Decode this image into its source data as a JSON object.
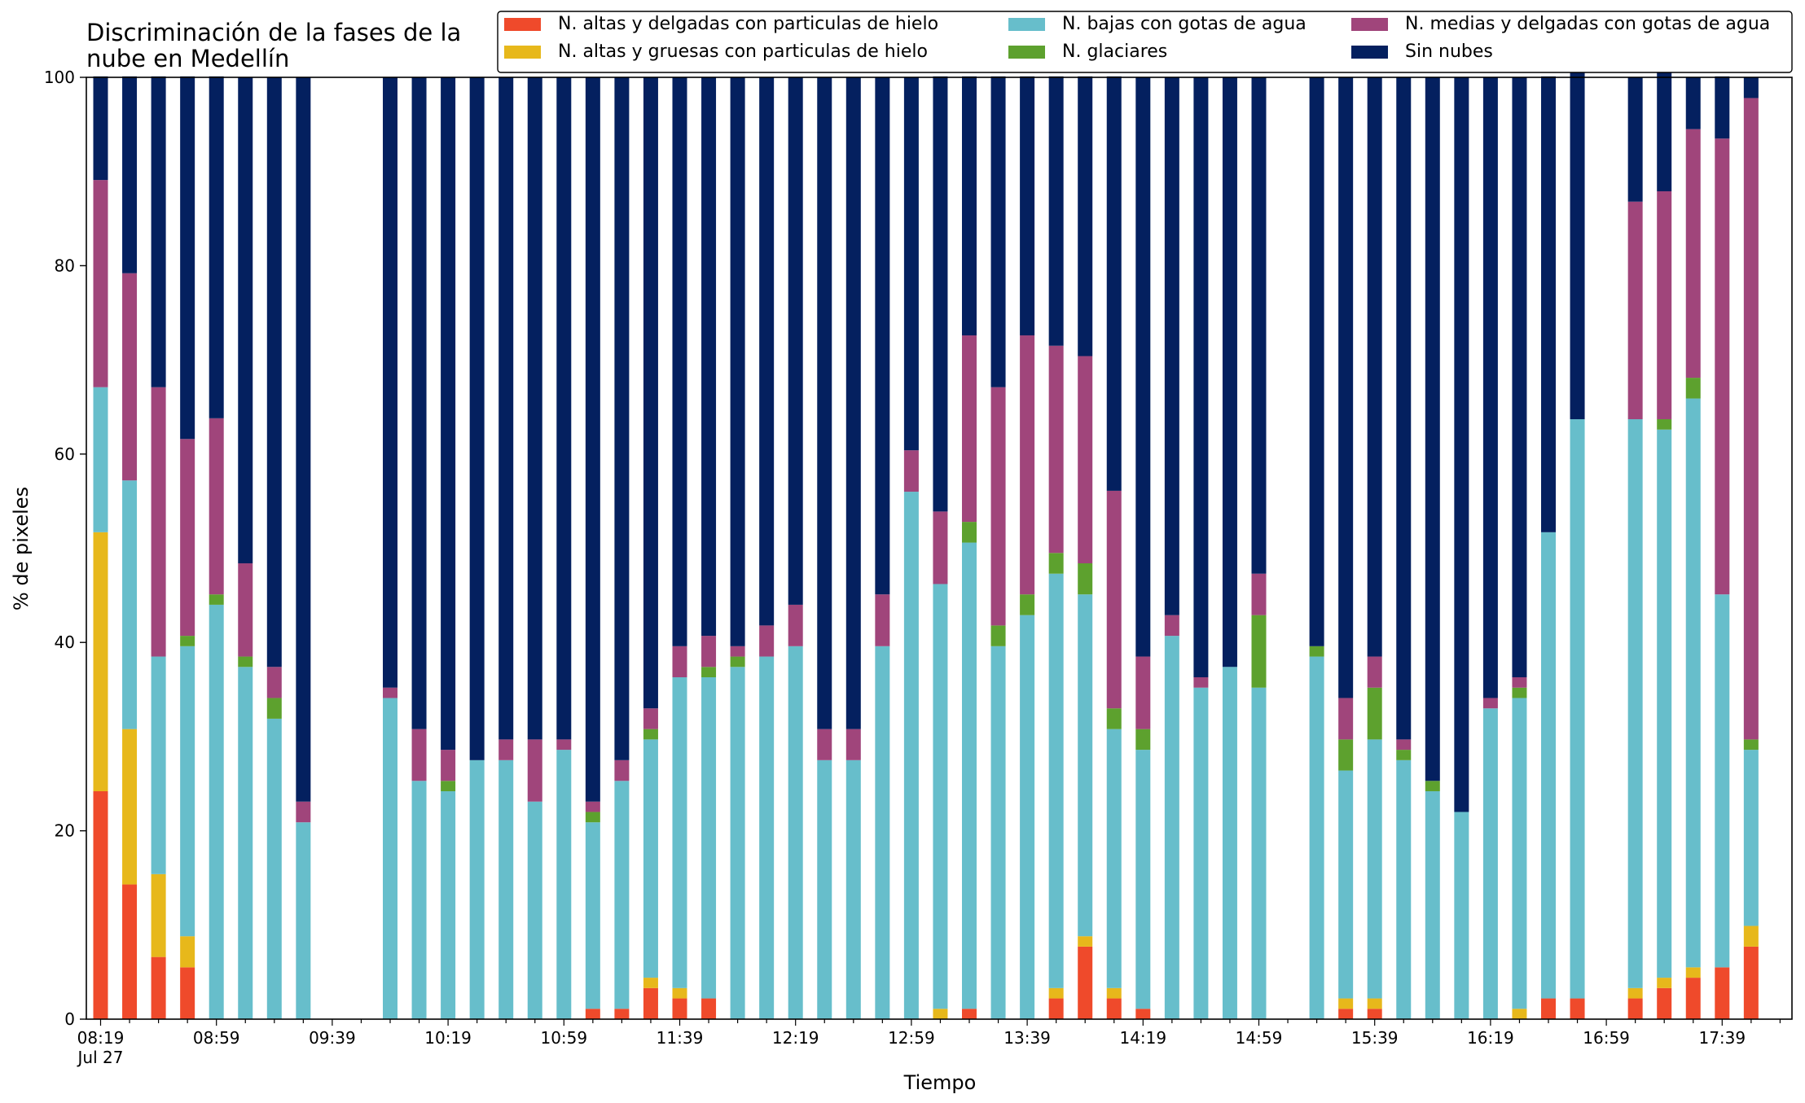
{
  "chart_data": {
    "type": "bar",
    "stacked": true,
    "title_lines": [
      "Discriminación de la fases de la",
      "nube en Medellín"
    ],
    "xlabel": "Tiempo",
    "ylabel": "% de pixeles",
    "ylim": [
      0,
      100
    ],
    "yticks": [
      0,
      20,
      40,
      60,
      80,
      100
    ],
    "xticks": [
      {
        "slot": 0,
        "label": "08:19",
        "sub": "Jul 27"
      },
      {
        "slot": 4,
        "label": "08:59"
      },
      {
        "slot": 8,
        "label": "09:39"
      },
      {
        "slot": 12,
        "label": "10:19"
      },
      {
        "slot": 16,
        "label": "10:59"
      },
      {
        "slot": 20,
        "label": "11:39"
      },
      {
        "slot": 24,
        "label": "12:19"
      },
      {
        "slot": 28,
        "label": "12:59"
      },
      {
        "slot": 32,
        "label": "13:39"
      },
      {
        "slot": 36,
        "label": "14:19"
      },
      {
        "slot": 40,
        "label": "14:59"
      },
      {
        "slot": 44,
        "label": "15:39"
      },
      {
        "slot": 48,
        "label": "16:19"
      },
      {
        "slot": 52,
        "label": "16:59"
      },
      {
        "slot": 56,
        "label": "17:39"
      }
    ],
    "grid": false,
    "legend_position": "top-right",
    "slots": [
      0,
      1,
      2,
      3,
      4,
      5,
      6,
      7,
      10,
      11,
      12,
      13,
      14,
      15,
      16,
      17,
      18,
      19,
      20,
      21,
      22,
      23,
      24,
      25,
      26,
      27,
      28,
      29,
      30,
      31,
      32,
      33,
      34,
      35,
      36,
      37,
      38,
      39,
      40,
      42,
      43,
      44,
      45,
      46,
      47,
      48,
      49,
      50,
      51,
      53,
      54,
      55,
      56,
      57
    ],
    "series": [
      {
        "name": "N. altas y delgadas con particulas de hielo",
        "color": "#ef4a2b",
        "values": [
          24.2,
          14.3,
          6.6,
          5.5,
          0,
          0,
          0,
          0,
          0,
          0,
          0,
          0,
          0,
          0,
          0,
          1.1,
          1.1,
          3.3,
          2.2,
          2.2,
          0,
          0,
          0,
          0,
          0,
          0,
          0,
          0,
          1.1,
          0,
          0,
          2.2,
          7.7,
          2.2,
          1.1,
          0,
          0,
          0,
          0,
          0,
          1.1,
          1.1,
          0,
          0,
          0,
          0,
          0,
          2.2,
          2.2,
          2.2,
          3.3,
          4.4,
          5.5,
          7.7
        ]
      },
      {
        "name": "N. altas y gruesas con particulas de hielo",
        "color": "#e7b81b",
        "values": [
          27.5,
          16.5,
          8.8,
          3.3,
          0,
          0,
          0,
          0,
          0,
          0,
          0,
          0,
          0,
          0,
          0,
          0,
          0,
          1.1,
          1.1,
          0,
          0,
          0,
          0,
          0,
          0,
          0,
          0,
          1.1,
          0,
          0,
          0,
          1.1,
          1.1,
          1.1,
          0,
          0,
          0,
          0,
          0,
          0,
          1.1,
          1.1,
          0,
          0,
          0,
          0,
          1.1,
          0,
          0,
          1.1,
          1.1,
          1.1,
          0,
          2.2
        ]
      },
      {
        "name": "N. bajas con gotas de agua",
        "color": "#67becb",
        "values": [
          15.4,
          26.4,
          23.1,
          30.8,
          44.0,
          37.4,
          31.9,
          20.9,
          34.1,
          25.3,
          24.2,
          27.5,
          27.5,
          23.1,
          28.6,
          19.8,
          24.2,
          25.3,
          33.0,
          34.1,
          37.4,
          38.5,
          39.6,
          27.5,
          27.5,
          39.6,
          56.0,
          45.1,
          49.5,
          39.6,
          42.9,
          44.0,
          36.3,
          27.5,
          27.5,
          40.7,
          35.2,
          37.4,
          35.2,
          38.5,
          24.2,
          27.5,
          27.5,
          24.2,
          22.0,
          33.0,
          33.0,
          49.5,
          61.5,
          60.4,
          58.2,
          60.4,
          39.6,
          18.7
        ]
      },
      {
        "name": "N. glaciares",
        "color": "#5da12e",
        "values": [
          0,
          0,
          0,
          1.1,
          1.1,
          1.1,
          2.2,
          0,
          0,
          0,
          1.1,
          0,
          0,
          0,
          0,
          1.1,
          0,
          1.1,
          0,
          1.1,
          1.1,
          0,
          0,
          0,
          0,
          0,
          0,
          0,
          2.2,
          2.2,
          2.2,
          2.2,
          3.3,
          2.2,
          2.2,
          0,
          0,
          0,
          7.7,
          1.1,
          3.3,
          5.5,
          1.1,
          1.1,
          0,
          0,
          1.1,
          0,
          0,
          0,
          1.1,
          2.2,
          0,
          1.1
        ]
      },
      {
        "name": "N. medias y delgadas con gotas de agua",
        "color": "#a0457b",
        "values": [
          22.0,
          22.0,
          28.6,
          20.9,
          18.7,
          9.9,
          3.3,
          2.2,
          1.1,
          5.5,
          3.3,
          0,
          2.2,
          6.6,
          1.1,
          1.1,
          2.2,
          2.2,
          3.3,
          3.3,
          1.1,
          3.3,
          4.4,
          3.3,
          3.3,
          5.5,
          4.4,
          7.7,
          19.8,
          25.3,
          27.5,
          22.0,
          22.0,
          23.1,
          7.7,
          2.2,
          1.1,
          0,
          4.4,
          0,
          4.4,
          3.3,
          1.1,
          0,
          0,
          1.1,
          1.1,
          0,
          0,
          23.1,
          24.2,
          26.4,
          48.4,
          68.1
        ]
      },
      {
        "name": "Sin nubes",
        "color": "#04205f",
        "values": [
          11.0,
          20.9,
          33.0,
          38.5,
          36.3,
          51.6,
          62.6,
          76.9,
          64.8,
          69.2,
          71.4,
          72.5,
          70.3,
          70.3,
          70.3,
          76.9,
          72.5,
          67.0,
          60.4,
          59.3,
          60.4,
          58.2,
          56.0,
          69.2,
          69.2,
          54.9,
          39.6,
          46.2,
          27.5,
          33.0,
          27.5,
          28.6,
          29.7,
          44.0,
          61.5,
          57.1,
          63.7,
          62.6,
          52.7,
          60.4,
          65.9,
          61.5,
          70.3,
          74.7,
          78.0,
          65.9,
          63.7,
          48.4,
          38.5,
          13.2,
          13.2,
          5.5,
          6.6,
          2.2
        ]
      }
    ]
  }
}
